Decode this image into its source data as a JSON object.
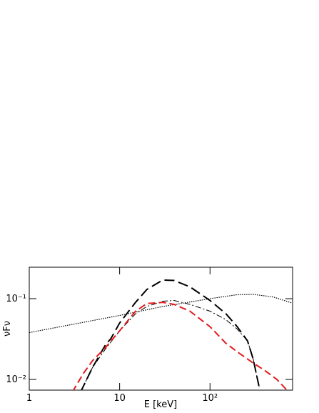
{
  "chart_data": {
    "type": "line",
    "x_label": "E [keV]",
    "y_label": "νFν",
    "xlog": true,
    "ylog": true,
    "xlim": [
      1,
      820
    ],
    "ylim": [
      0.00737,
      0.245
    ],
    "xticks": [
      1,
      10,
      {
        "value": 100,
        "label": "10²"
      }
    ],
    "yticks": [
      {
        "value": 0.01,
        "label": "10⁻²"
      },
      {
        "value": 0.1,
        "label": "10⁻¹"
      }
    ],
    "series": [
      {
        "color": "#000000",
        "dash": "14,6",
        "width": 2,
        "x": [
          3.7,
          5,
          7,
          8,
          10,
          15,
          20,
          30,
          40,
          60,
          100,
          150,
          200,
          260,
          300,
          350
        ],
        "values": [
          0.007,
          0.014,
          0.027,
          0.032,
          0.05,
          0.09,
          0.13,
          0.17,
          0.168,
          0.14,
          0.095,
          0.065,
          0.045,
          0.03,
          0.018,
          0.008
        ]
      },
      {
        "color": "#000000",
        "dash": "8,3,2,3",
        "width": 1,
        "x": [
          3.7,
          5,
          7,
          10,
          15,
          20,
          30,
          40,
          60,
          100,
          150,
          200,
          260,
          300,
          350
        ],
        "values": [
          0.007,
          0.014,
          0.024,
          0.04,
          0.065,
          0.08,
          0.093,
          0.095,
          0.085,
          0.07,
          0.055,
          0.042,
          0.03,
          0.018,
          0.008
        ]
      },
      {
        "color": "#000000",
        "dash": "1.5,1.5",
        "width": 1.2,
        "x": [
          1,
          3,
          10,
          30,
          100,
          200,
          300,
          500,
          820
        ],
        "values": [
          0.038,
          0.048,
          0.062,
          0.08,
          0.1,
          0.112,
          0.113,
          0.105,
          0.088
        ]
      },
      {
        "color": "#e41a1c",
        "dash": "10,5",
        "width": 2,
        "x": [
          3,
          4,
          5,
          7,
          10,
          15,
          20,
          30,
          40,
          60,
          100,
          150,
          200,
          300,
          400,
          550,
          700
        ],
        "values": [
          0.007,
          0.012,
          0.017,
          0.025,
          0.04,
          0.07,
          0.087,
          0.09,
          0.085,
          0.07,
          0.045,
          0.028,
          0.022,
          0.016,
          0.013,
          0.01,
          0.0075
        ]
      }
    ]
  }
}
